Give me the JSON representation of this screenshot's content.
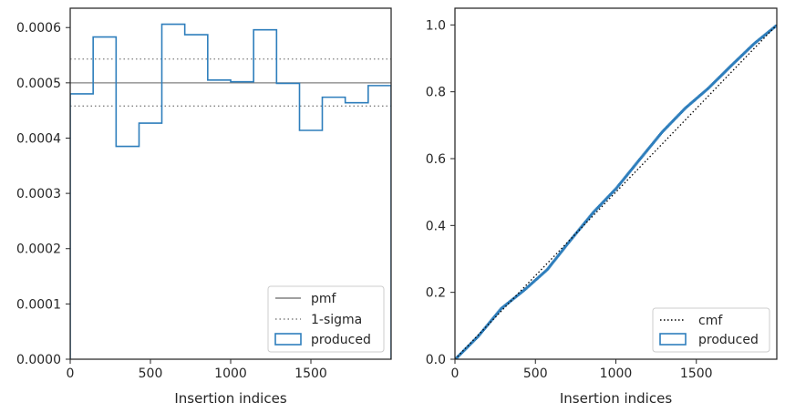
{
  "colors": {
    "produced": "#2e7ebc",
    "pmf": "#808080",
    "sigma": "#808080",
    "cmf": "#000000",
    "axes": "#262626"
  },
  "chart_data": [
    {
      "type": "histogram",
      "xlabel": "Insertion indices",
      "ylabel": "",
      "xlim": [
        0,
        2000
      ],
      "ylim": [
        0,
        0.000635
      ],
      "xticks": [
        0,
        500,
        1000,
        1500
      ],
      "xtick_labels": [
        "0",
        "500",
        "1000",
        "1500"
      ],
      "yticks": [
        0,
        0.0001,
        0.0002,
        0.0003,
        0.0004,
        0.0005,
        0.0006
      ],
      "ytick_labels": [
        "0.0000",
        "0.0001",
        "0.0002",
        "0.0003",
        "0.0004",
        "0.0005",
        "0.0006"
      ],
      "bin_edges": [
        0,
        143,
        286,
        429,
        571,
        714,
        857,
        1000,
        1143,
        1286,
        1429,
        1571,
        1714,
        1857,
        2000
      ],
      "series": [
        {
          "name": "produced",
          "style": "step",
          "values": [
            0.00048,
            0.000583,
            0.000385,
            0.000427,
            0.000606,
            0.000587,
            0.000505,
            0.000502,
            0.000596,
            0.000499,
            0.000414,
            0.000474,
            0.000464,
            0.000495
          ]
        },
        {
          "name": "pmf",
          "style": "hline",
          "value": 0.0005
        },
        {
          "name": "1-sigma",
          "style": "hline-dotted",
          "values": [
            0.000543,
            0.000458
          ]
        }
      ],
      "legend": {
        "position": "bottom-right",
        "entries": [
          "pmf",
          "1-sigma",
          "produced"
        ]
      }
    },
    {
      "type": "line",
      "xlabel": "Insertion indices",
      "ylabel": "",
      "xlim": [
        0,
        2000
      ],
      "ylim": [
        0,
        1.05
      ],
      "xticks": [
        0,
        500,
        1000,
        1500
      ],
      "xtick_labels": [
        "0",
        "500",
        "1000",
        "1500"
      ],
      "yticks": [
        0,
        0.2,
        0.4,
        0.6,
        0.8,
        1.0
      ],
      "ytick_labels": [
        "0.0",
        "0.2",
        "0.4",
        "0.6",
        "0.8",
        "1.0"
      ],
      "series": [
        {
          "name": "cmf",
          "style": "dotted",
          "x": [
            0,
            2000
          ],
          "y": [
            0,
            1.0
          ]
        },
        {
          "name": "produced",
          "style": "step",
          "x": [
            0,
            143,
            286,
            429,
            571,
            714,
            857,
            1000,
            1143,
            1286,
            1429,
            1571,
            1714,
            1857,
            2000
          ],
          "y": [
            0,
            0.069,
            0.152,
            0.207,
            0.268,
            0.355,
            0.439,
            0.511,
            0.596,
            0.68,
            0.751,
            0.81,
            0.878,
            0.944,
            1.0
          ]
        }
      ],
      "legend": {
        "position": "bottom-right",
        "entries": [
          "cmf",
          "produced"
        ]
      }
    }
  ]
}
